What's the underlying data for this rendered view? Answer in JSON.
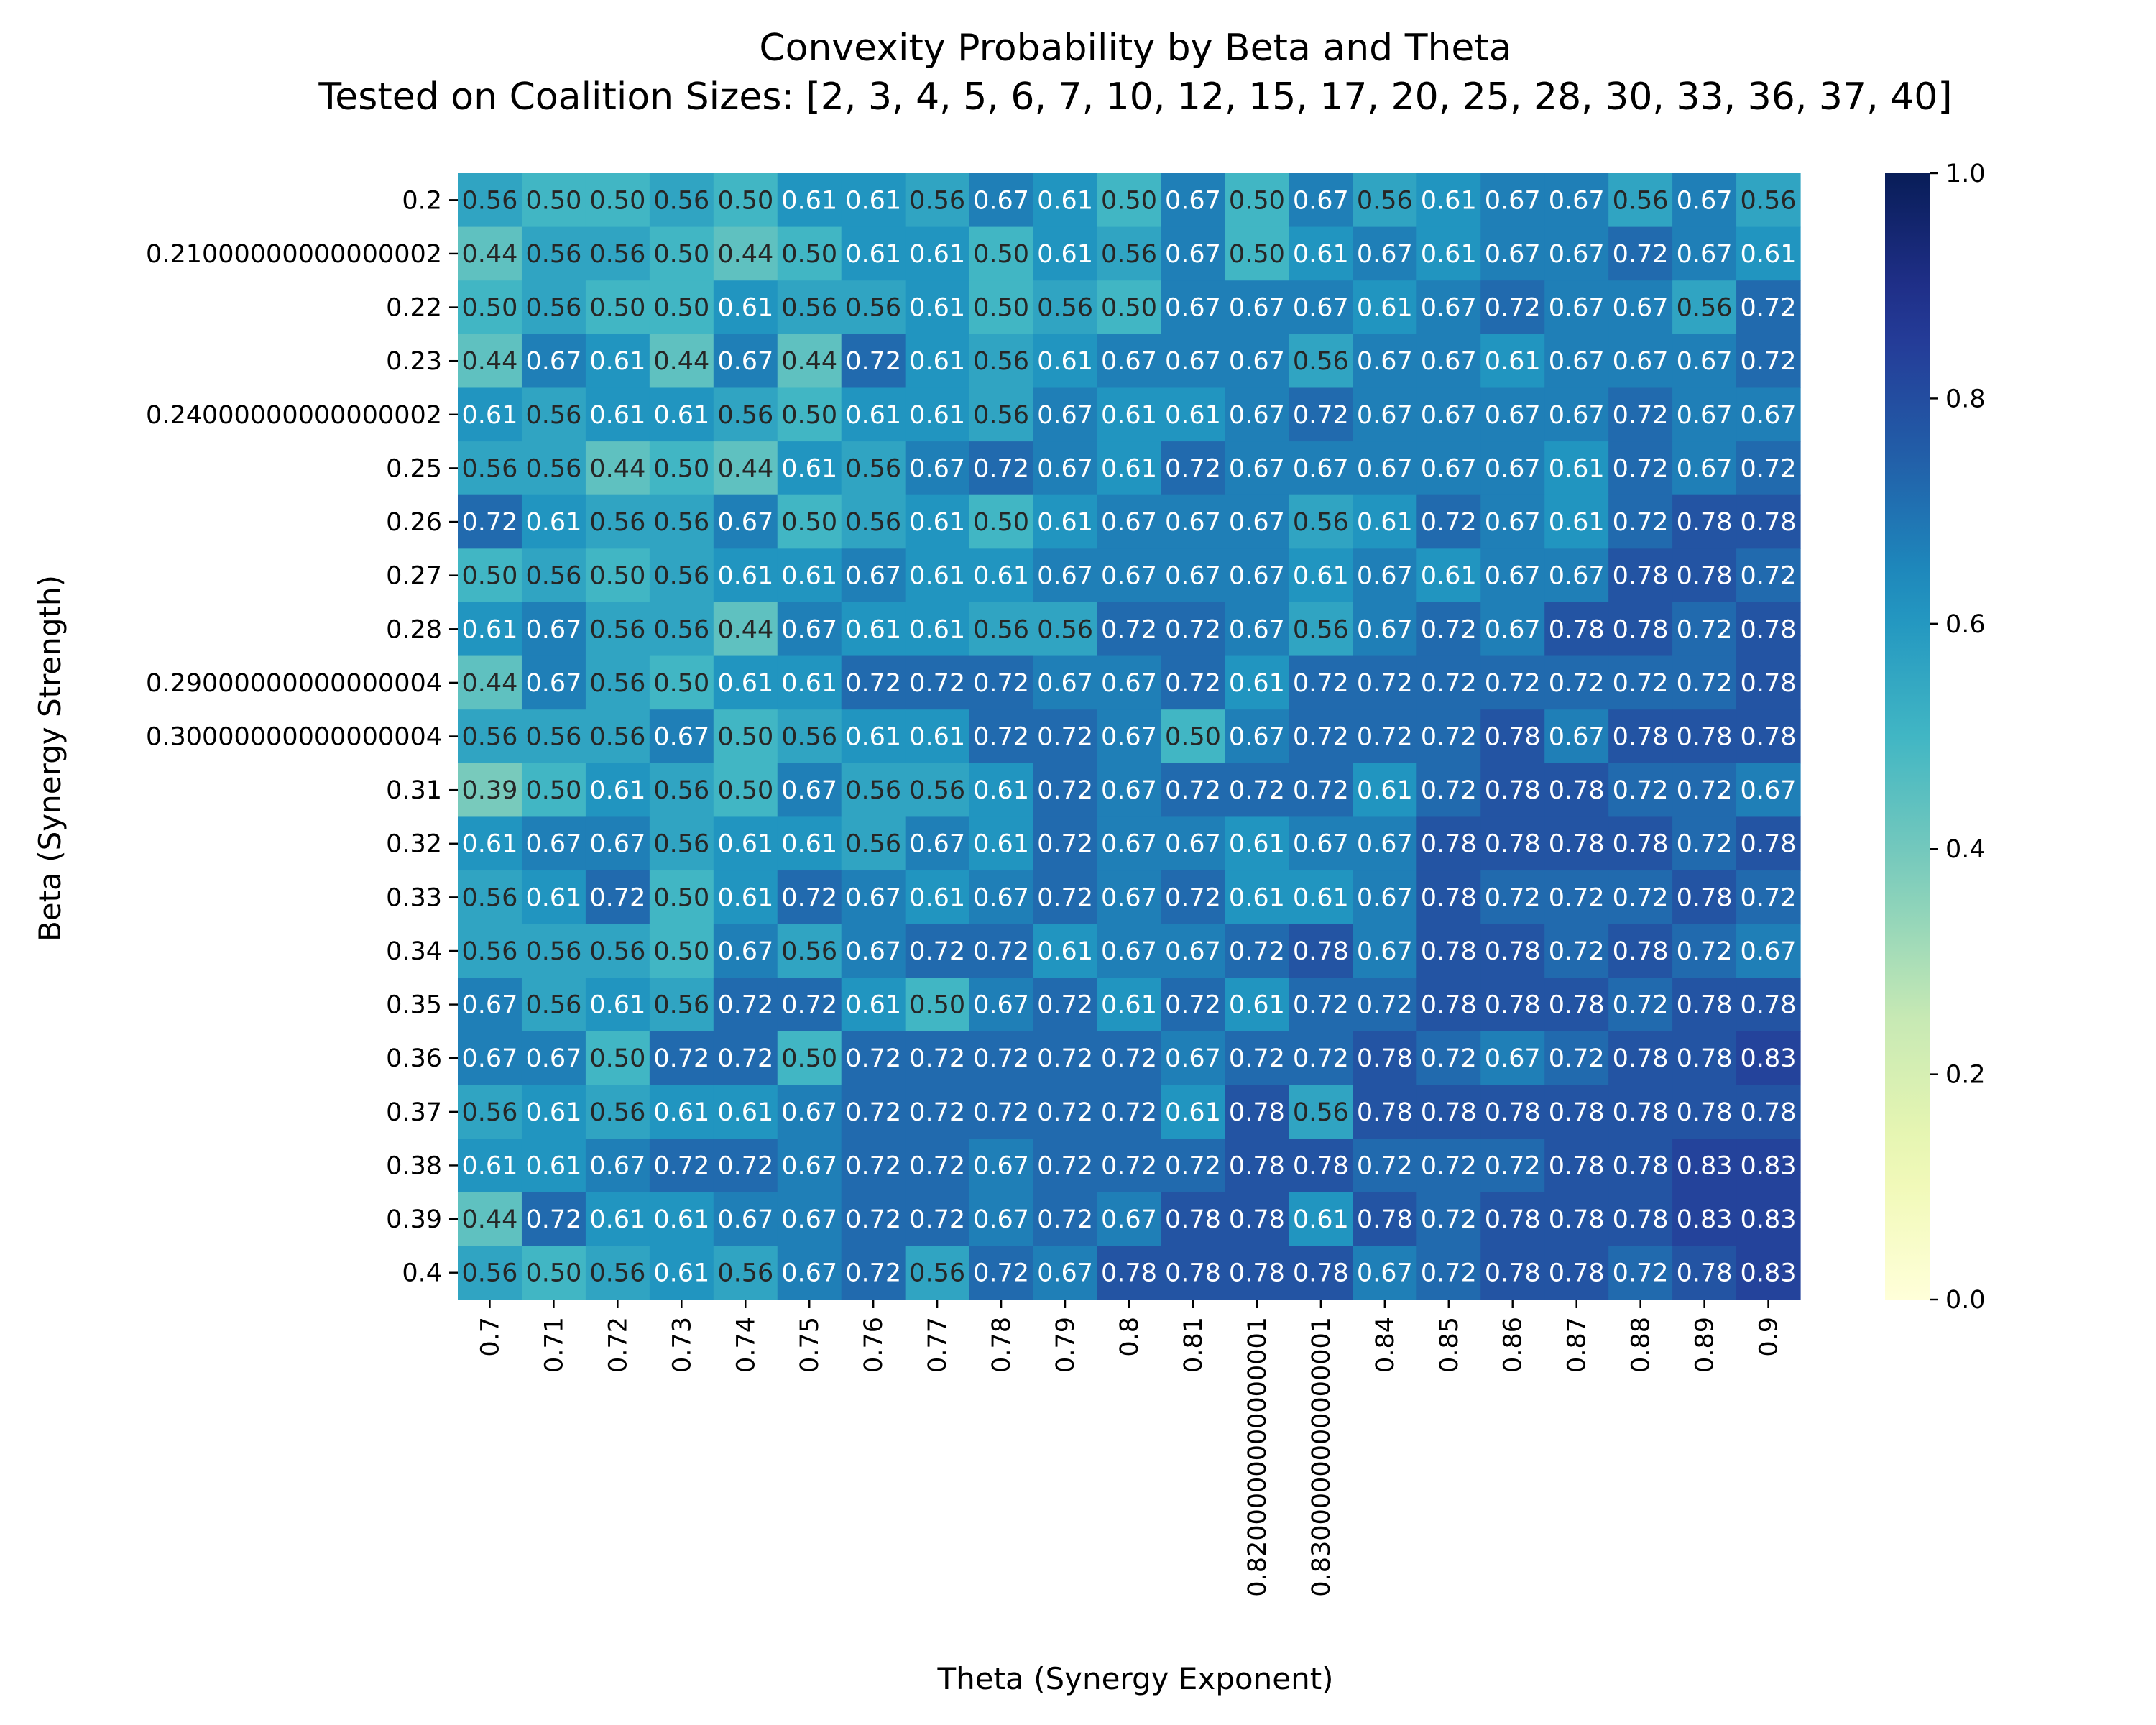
{
  "chart_data": {
    "type": "heatmap",
    "title": "Convexity Probability by Beta and Theta",
    "subtitle": "Tested on Coalition Sizes: [2, 3, 4, 5, 6, 7, 10, 12, 15, 17, 20, 25, 28, 30, 33, 36, 37, 40]",
    "xlabel": "Theta (Synergy Exponent)",
    "ylabel": "Beta (Synergy Strength)",
    "colormap": "YlGnBu",
    "color_range": [
      0.0,
      1.0
    ],
    "colorbar_ticks": [
      "0.0",
      "0.2",
      "0.4",
      "0.6",
      "0.8",
      "1.0"
    ],
    "x_ticks": [
      "0.7",
      "0.71",
      "0.72",
      "0.73",
      "0.74",
      "0.75",
      "0.76",
      "0.77",
      "0.78",
      "0.79",
      "0.8",
      "0.81",
      "0.8200000000000001",
      "0.8300000000000001",
      "0.84",
      "0.85",
      "0.86",
      "0.87",
      "0.88",
      "0.89",
      "0.9"
    ],
    "y_ticks": [
      "0.2",
      "0.21000000000000002",
      "0.22",
      "0.23",
      "0.24000000000000002",
      "0.25",
      "0.26",
      "0.27",
      "0.28",
      "0.29000000000000004",
      "0.30000000000000004",
      "0.31",
      "0.32",
      "0.33",
      "0.34",
      "0.35",
      "0.36",
      "0.37",
      "0.38",
      "0.39",
      "0.4"
    ],
    "values": [
      [
        0.56,
        0.5,
        0.5,
        0.56,
        0.5,
        0.61,
        0.61,
        0.56,
        0.67,
        0.61,
        0.5,
        0.67,
        0.5,
        0.67,
        0.56,
        0.61,
        0.67,
        0.67,
        0.56,
        0.67,
        0.56
      ],
      [
        0.44,
        0.56,
        0.56,
        0.5,
        0.44,
        0.5,
        0.61,
        0.61,
        0.5,
        0.61,
        0.56,
        0.67,
        0.5,
        0.61,
        0.67,
        0.61,
        0.67,
        0.67,
        0.72,
        0.67,
        0.61
      ],
      [
        0.5,
        0.56,
        0.5,
        0.5,
        0.61,
        0.56,
        0.56,
        0.61,
        0.5,
        0.56,
        0.5,
        0.67,
        0.67,
        0.67,
        0.61,
        0.67,
        0.72,
        0.67,
        0.67,
        0.56,
        0.72
      ],
      [
        0.44,
        0.67,
        0.61,
        0.44,
        0.67,
        0.44,
        0.72,
        0.61,
        0.56,
        0.61,
        0.67,
        0.67,
        0.67,
        0.56,
        0.67,
        0.67,
        0.61,
        0.67,
        0.67,
        0.67,
        0.72
      ],
      [
        0.61,
        0.56,
        0.61,
        0.61,
        0.56,
        0.5,
        0.61,
        0.61,
        0.56,
        0.67,
        0.61,
        0.61,
        0.67,
        0.72,
        0.67,
        0.67,
        0.67,
        0.67,
        0.72,
        0.67,
        0.67
      ],
      [
        0.56,
        0.56,
        0.44,
        0.5,
        0.44,
        0.61,
        0.56,
        0.67,
        0.72,
        0.67,
        0.61,
        0.72,
        0.67,
        0.67,
        0.67,
        0.67,
        0.67,
        0.61,
        0.72,
        0.67,
        0.72
      ],
      [
        0.72,
        0.61,
        0.56,
        0.56,
        0.67,
        0.5,
        0.56,
        0.61,
        0.5,
        0.61,
        0.67,
        0.67,
        0.67,
        0.56,
        0.61,
        0.72,
        0.67,
        0.61,
        0.72,
        0.78,
        0.78
      ],
      [
        0.5,
        0.56,
        0.5,
        0.56,
        0.61,
        0.61,
        0.67,
        0.61,
        0.61,
        0.67,
        0.67,
        0.67,
        0.67,
        0.61,
        0.67,
        0.61,
        0.67,
        0.67,
        0.78,
        0.78,
        0.72
      ],
      [
        0.61,
        0.67,
        0.56,
        0.56,
        0.44,
        0.67,
        0.61,
        0.61,
        0.56,
        0.56,
        0.72,
        0.72,
        0.67,
        0.56,
        0.67,
        0.72,
        0.67,
        0.78,
        0.78,
        0.72,
        0.78
      ],
      [
        0.44,
        0.67,
        0.56,
        0.5,
        0.61,
        0.61,
        0.72,
        0.72,
        0.72,
        0.67,
        0.67,
        0.72,
        0.61,
        0.72,
        0.72,
        0.72,
        0.72,
        0.72,
        0.72,
        0.72,
        0.78
      ],
      [
        0.56,
        0.56,
        0.56,
        0.67,
        0.5,
        0.56,
        0.61,
        0.61,
        0.72,
        0.72,
        0.67,
        0.5,
        0.67,
        0.72,
        0.72,
        0.72,
        0.78,
        0.67,
        0.78,
        0.78,
        0.78
      ],
      [
        0.39,
        0.5,
        0.61,
        0.56,
        0.5,
        0.67,
        0.56,
        0.56,
        0.61,
        0.72,
        0.67,
        0.72,
        0.72,
        0.72,
        0.61,
        0.72,
        0.78,
        0.78,
        0.72,
        0.72,
        0.67
      ],
      [
        0.61,
        0.67,
        0.67,
        0.56,
        0.61,
        0.61,
        0.56,
        0.67,
        0.61,
        0.72,
        0.67,
        0.67,
        0.61,
        0.67,
        0.67,
        0.78,
        0.78,
        0.78,
        0.78,
        0.72,
        0.78
      ],
      [
        0.56,
        0.61,
        0.72,
        0.5,
        0.61,
        0.72,
        0.67,
        0.61,
        0.67,
        0.72,
        0.67,
        0.72,
        0.61,
        0.61,
        0.67,
        0.78,
        0.72,
        0.72,
        0.72,
        0.78,
        0.72
      ],
      [
        0.56,
        0.56,
        0.56,
        0.5,
        0.67,
        0.56,
        0.67,
        0.72,
        0.72,
        0.61,
        0.67,
        0.67,
        0.72,
        0.78,
        0.67,
        0.78,
        0.78,
        0.72,
        0.78,
        0.72,
        0.67
      ],
      [
        0.67,
        0.56,
        0.61,
        0.56,
        0.72,
        0.72,
        0.61,
        0.5,
        0.67,
        0.72,
        0.61,
        0.72,
        0.61,
        0.72,
        0.72,
        0.78,
        0.78,
        0.78,
        0.72,
        0.78,
        0.78
      ],
      [
        0.67,
        0.67,
        0.5,
        0.72,
        0.72,
        0.5,
        0.72,
        0.72,
        0.72,
        0.72,
        0.72,
        0.67,
        0.72,
        0.72,
        0.78,
        0.72,
        0.67,
        0.72,
        0.78,
        0.78,
        0.83
      ],
      [
        0.56,
        0.61,
        0.56,
        0.61,
        0.61,
        0.67,
        0.72,
        0.72,
        0.72,
        0.72,
        0.72,
        0.61,
        0.78,
        0.56,
        0.78,
        0.78,
        0.78,
        0.78,
        0.78,
        0.78,
        0.78
      ],
      [
        0.61,
        0.61,
        0.67,
        0.72,
        0.72,
        0.67,
        0.72,
        0.72,
        0.67,
        0.72,
        0.72,
        0.72,
        0.78,
        0.78,
        0.72,
        0.72,
        0.72,
        0.78,
        0.78,
        0.83,
        0.83
      ],
      [
        0.44,
        0.72,
        0.61,
        0.61,
        0.67,
        0.67,
        0.72,
        0.72,
        0.67,
        0.72,
        0.67,
        0.78,
        0.78,
        0.61,
        0.78,
        0.72,
        0.78,
        0.78,
        0.78,
        0.83,
        0.83
      ],
      [
        0.56,
        0.5,
        0.56,
        0.61,
        0.56,
        0.67,
        0.72,
        0.56,
        0.72,
        0.67,
        0.78,
        0.78,
        0.78,
        0.78,
        0.67,
        0.72,
        0.78,
        0.78,
        0.72,
        0.78,
        0.83
      ]
    ]
  }
}
